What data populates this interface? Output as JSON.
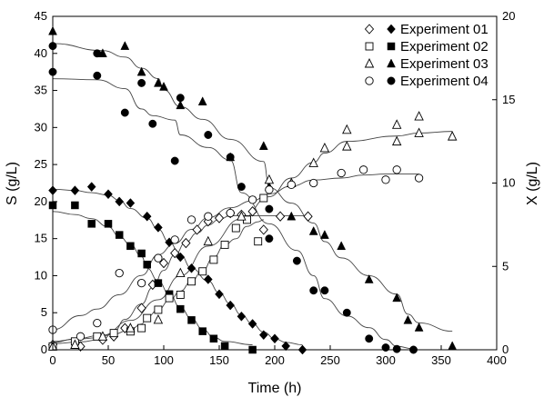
{
  "chart_data": {
    "type": "scatter",
    "xlabel": "Time (h)",
    "ylabel_left": "S (g/L)",
    "ylabel_right": "X (g/L)",
    "xlim": [
      0,
      400
    ],
    "ylim_left": [
      0,
      45
    ],
    "ylim_right": [
      0,
      20
    ],
    "x_ticks": [
      0,
      50,
      100,
      150,
      200,
      250,
      300,
      350,
      400
    ],
    "y_left_ticks": [
      0,
      5,
      10,
      15,
      20,
      25,
      30,
      35,
      40,
      45
    ],
    "y_right_ticks": [
      0,
      5,
      10,
      15,
      20
    ],
    "grid": false,
    "legend_position": "top-right",
    "legend": [
      "Experiment 01",
      "Experiment 02",
      "Experiment 03",
      "Experiment 04"
    ],
    "series": [
      {
        "name": "Experiment 01",
        "variable": "S",
        "axis": "left",
        "marker": "diamond",
        "filled": true,
        "points": [
          [
            0,
            21.5
          ],
          [
            20,
            21.5
          ],
          [
            35,
            22
          ],
          [
            50,
            21
          ],
          [
            60,
            20
          ],
          [
            70,
            19.8
          ],
          [
            85,
            18
          ],
          [
            95,
            16.5
          ],
          [
            105,
            14.5
          ],
          [
            115,
            12.5
          ],
          [
            125,
            11
          ],
          [
            140,
            9.5
          ],
          [
            150,
            7.5
          ],
          [
            160,
            6
          ],
          [
            170,
            4.5
          ],
          [
            180,
            3.5
          ],
          [
            190,
            2
          ],
          [
            200,
            1.5
          ],
          [
            210,
            0.5
          ],
          [
            225,
            0
          ]
        ]
      },
      {
        "name": "Experiment 01",
        "variable": "X",
        "axis": "right",
        "marker": "diamond",
        "filled": false,
        "points": [
          [
            0,
            0.3
          ],
          [
            25,
            0.2
          ],
          [
            45,
            0.6
          ],
          [
            55,
            0.8
          ],
          [
            65,
            1.3
          ],
          [
            80,
            2.5
          ],
          [
            90,
            3.9
          ],
          [
            100,
            5.2
          ],
          [
            110,
            5.8
          ],
          [
            120,
            6.4
          ],
          [
            130,
            7.2
          ],
          [
            140,
            7.7
          ],
          [
            150,
            7.9
          ],
          [
            160,
            8.2
          ],
          [
            170,
            8.1
          ],
          [
            180,
            8.3
          ],
          [
            190,
            7.2
          ],
          [
            205,
            8.0
          ],
          [
            230,
            8.0
          ]
        ]
      },
      {
        "name": "Experiment 02",
        "variable": "S",
        "axis": "left",
        "marker": "square",
        "filled": true,
        "points": [
          [
            0,
            19.5
          ],
          [
            20,
            19.5
          ],
          [
            35,
            17
          ],
          [
            50,
            17
          ],
          [
            60,
            15.5
          ],
          [
            70,
            14
          ],
          [
            80,
            13
          ],
          [
            85,
            11.5
          ],
          [
            95,
            9
          ],
          [
            105,
            7.5
          ],
          [
            115,
            5.5
          ],
          [
            125,
            4
          ],
          [
            135,
            2.5
          ],
          [
            145,
            1.5
          ],
          [
            155,
            0.5
          ],
          [
            180,
            0
          ]
        ]
      },
      {
        "name": "Experiment 02",
        "variable": "X",
        "axis": "right",
        "marker": "square",
        "filled": false,
        "points": [
          [
            0,
            0.2
          ],
          [
            20,
            0.5
          ],
          [
            40,
            0.8
          ],
          [
            55,
            1.0
          ],
          [
            70,
            1.1
          ],
          [
            80,
            1.3
          ],
          [
            85,
            1.9
          ],
          [
            95,
            2.4
          ],
          [
            105,
            3.1
          ],
          [
            115,
            3.3
          ],
          [
            125,
            4.1
          ],
          [
            135,
            4.7
          ],
          [
            145,
            5.4
          ],
          [
            155,
            6.3
          ],
          [
            165,
            7.3
          ],
          [
            175,
            7.8
          ],
          [
            185,
            6.5
          ],
          [
            190,
            9.1
          ]
        ]
      },
      {
        "name": "Experiment 03",
        "variable": "S",
        "axis": "left",
        "marker": "triangle",
        "filled": true,
        "points": [
          [
            0,
            43
          ],
          [
            45,
            40
          ],
          [
            65,
            41
          ],
          [
            80,
            37.5
          ],
          [
            95,
            36
          ],
          [
            100,
            35.5
          ],
          [
            115,
            33
          ],
          [
            135,
            33.5
          ],
          [
            160,
            26
          ],
          [
            190,
            27.5
          ],
          [
            195,
            22
          ],
          [
            215,
            18
          ],
          [
            235,
            16
          ],
          [
            245,
            15.5
          ],
          [
            260,
            14
          ],
          [
            285,
            9.5
          ],
          [
            310,
            7
          ],
          [
            320,
            4
          ],
          [
            330,
            3
          ],
          [
            360,
            0.5
          ]
        ]
      },
      {
        "name": "Experiment 03",
        "variable": "X",
        "axis": "right",
        "marker": "triangle",
        "filled": false,
        "points": [
          [
            0,
            0.2
          ],
          [
            20,
            0.3
          ],
          [
            45,
            0.8
          ],
          [
            70,
            1.3
          ],
          [
            95,
            1.8
          ],
          [
            115,
            4.6
          ],
          [
            140,
            6.5
          ],
          [
            170,
            8.0
          ],
          [
            195,
            10.2
          ],
          [
            215,
            10.0
          ],
          [
            235,
            11.2
          ],
          [
            245,
            12.1
          ],
          [
            265,
            13.2
          ],
          [
            265,
            12.2
          ],
          [
            310,
            13.5
          ],
          [
            310,
            12.5
          ],
          [
            330,
            14.0
          ],
          [
            330,
            13.0
          ],
          [
            360,
            12.8
          ]
        ]
      },
      {
        "name": "Experiment 04",
        "variable": "S",
        "axis": "left",
        "marker": "circle",
        "filled": true,
        "points": [
          [
            0,
            41
          ],
          [
            0,
            37.5
          ],
          [
            40,
            40
          ],
          [
            40,
            37
          ],
          [
            65,
            32
          ],
          [
            80,
            36
          ],
          [
            90,
            30.5
          ],
          [
            115,
            34
          ],
          [
            110,
            25.5
          ],
          [
            140,
            29
          ],
          [
            160,
            26
          ],
          [
            170,
            22
          ],
          [
            195,
            19
          ],
          [
            195,
            15
          ],
          [
            220,
            12
          ],
          [
            235,
            8
          ],
          [
            245,
            8
          ],
          [
            265,
            5
          ],
          [
            285,
            1.5
          ],
          [
            300,
            0.3
          ],
          [
            310,
            0.1
          ],
          [
            325,
            0
          ]
        ]
      },
      {
        "name": "Experiment 04",
        "variable": "X",
        "axis": "right",
        "marker": "circle",
        "filled": false,
        "points": [
          [
            0,
            1.2
          ],
          [
            25,
            0.8
          ],
          [
            40,
            1.6
          ],
          [
            60,
            4.6
          ],
          [
            80,
            4.0
          ],
          [
            95,
            5.5
          ],
          [
            110,
            6.6
          ],
          [
            125,
            7.8
          ],
          [
            140,
            8.0
          ],
          [
            160,
            8.2
          ],
          [
            180,
            9.0
          ],
          [
            195,
            9.6
          ],
          [
            215,
            9.9
          ],
          [
            235,
            10.0
          ],
          [
            260,
            10.6
          ],
          [
            280,
            10.8
          ],
          [
            300,
            10.2
          ],
          [
            310,
            10.8
          ],
          [
            330,
            10.3
          ]
        ]
      }
    ],
    "fit_curves": "smooth model fit line through each S and X series"
  }
}
